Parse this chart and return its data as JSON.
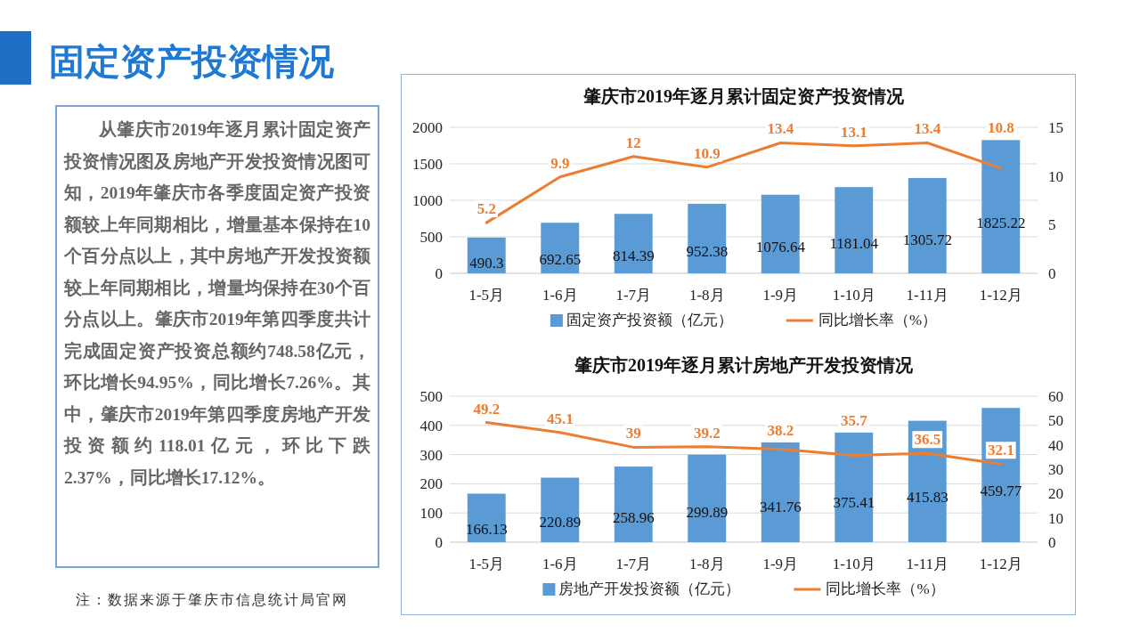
{
  "chart_data": [
    {
      "type": "other",
      "title": "固定资产投资情况",
      "annotations": [
        "从肇庆市2019年逐月累计固定资产投资情况图及房地产开发投资情况图可知，2019年肇庆市各季度固定资产投资额较上年同期相比，增量基本保持在10个百分点以上，其中房地产开发投资额较上年同期相比，增量均保持在30个百分点以上。肇庆市2019年第四季度共计完成固定资产投资总额约748.58亿元，环比增长94.95%，同比增长7.26%。其中，肇庆市2019年第四季度房地产开发投资额约118.01亿元，环比下跌2.37%，同比增长17.12%。",
        "注：数据来源于肇庆市信息统计局官网"
      ]
    },
    {
      "type": "bar",
      "title": "肇庆市2019年逐月累计固定资产投资情况",
      "categories": [
        "1-5月",
        "1-6月",
        "1-7月",
        "1-8月",
        "1-9月",
        "1-10月",
        "1-11月",
        "1-12月"
      ],
      "series": [
        {
          "name": "固定资产投资额（亿元）",
          "type": "bar",
          "color": "#5b9bd5",
          "values": [
            490.3,
            692.65,
            814.39,
            952.38,
            1076.64,
            1181.04,
            1305.72,
            1825.22
          ]
        },
        {
          "name": "同比增长率（%）",
          "type": "line",
          "axis": "y2",
          "color": "#ed7d31",
          "values": [
            5.2,
            9.9,
            12,
            10.9,
            13.4,
            13.1,
            13.4,
            10.8
          ]
        }
      ],
      "ylim": [
        0,
        2000
      ],
      "yticks": [
        0,
        500,
        1000,
        1500,
        2000
      ],
      "y2lim": [
        0,
        15
      ],
      "y2ticks": [
        0,
        5,
        10,
        15
      ],
      "grid": "y",
      "legend": "bottom",
      "data_labels": true
    },
    {
      "type": "bar",
      "title": "肇庆市2019年逐月累计房地产开发投资情况",
      "categories": [
        "1-5月",
        "1-6月",
        "1-7月",
        "1-8月",
        "1-9月",
        "1-10月",
        "1-11月",
        "1-12月"
      ],
      "series": [
        {
          "name": "房地产开发投资额（亿元）",
          "type": "bar",
          "color": "#5b9bd5",
          "values": [
            166.13,
            220.89,
            258.96,
            299.89,
            341.76,
            375.41,
            415.83,
            459.77
          ]
        },
        {
          "name": "同比增长率（%）",
          "type": "line",
          "axis": "y2",
          "color": "#ed7d31",
          "values": [
            49.2,
            45.1,
            39,
            39.2,
            38.2,
            35.7,
            36.5,
            32.1
          ]
        }
      ],
      "ylim": [
        0,
        500
      ],
      "yticks": [
        0,
        100,
        200,
        300,
        400,
        500
      ],
      "y2lim": [
        0,
        60
      ],
      "y2ticks": [
        0,
        10,
        20,
        30,
        40,
        50,
        60
      ],
      "grid": "y",
      "legend": "bottom",
      "data_labels": true
    }
  ]
}
